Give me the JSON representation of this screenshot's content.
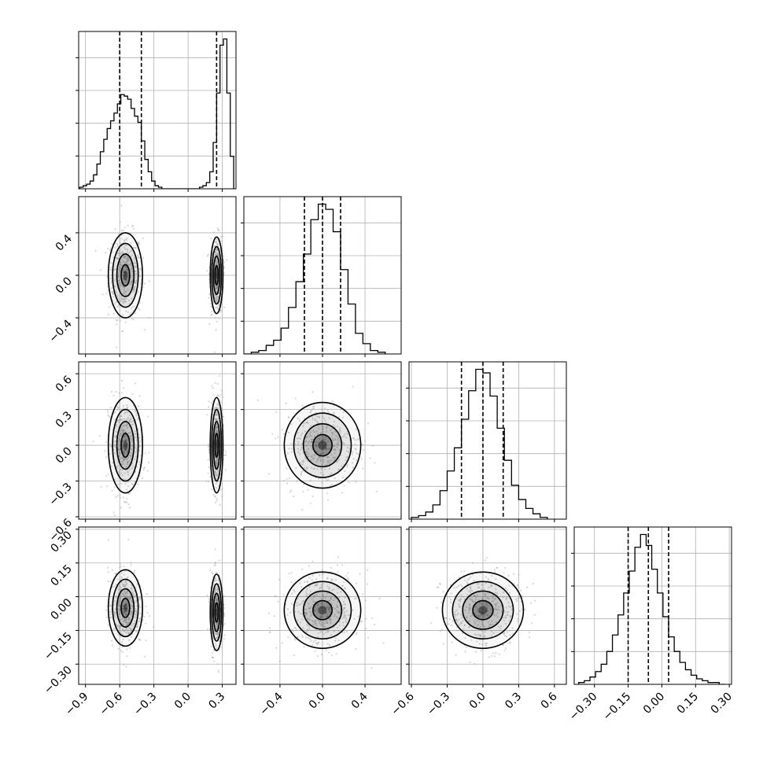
{
  "chart_data": {
    "type": "corner",
    "title": "",
    "n_params": 4,
    "params": [
      {
        "label": "",
        "range": [
          -0.96,
          0.42
        ],
        "ticks": [
          -0.9,
          -0.6,
          -0.3,
          0.0,
          0.3
        ],
        "tick_labels": [
          "−0.9",
          "−0.6",
          "−0.3",
          "0.0",
          "0.3"
        ],
        "quantiles": [
          -0.6,
          -0.41,
          0.25
        ],
        "hist": {
          "edges": [
            -0.95,
            -0.92,
            -0.89,
            -0.86,
            -0.83,
            -0.8,
            -0.77,
            -0.74,
            -0.71,
            -0.68,
            -0.65,
            -0.62,
            -0.59,
            -0.56,
            -0.53,
            -0.5,
            -0.47,
            -0.44,
            -0.41,
            -0.38,
            -0.35,
            -0.32,
            -0.29,
            -0.26,
            -0.23,
            -0.2,
            -0.17,
            -0.14,
            -0.11,
            -0.08,
            -0.05,
            -0.02,
            0.01,
            0.04,
            0.07,
            0.1,
            0.13,
            0.16,
            0.19,
            0.22,
            0.25,
            0.28,
            0.31,
            0.34,
            0.37,
            0.4
          ],
          "counts": [
            0.01,
            0.02,
            0.03,
            0.05,
            0.09,
            0.16,
            0.24,
            0.32,
            0.39,
            0.44,
            0.49,
            0.55,
            0.61,
            0.6,
            0.58,
            0.52,
            0.47,
            0.43,
            0.31,
            0.19,
            0.11,
            0.05,
            0.02,
            0.01,
            0.0,
            0.0,
            0.0,
            0.0,
            0.0,
            0.0,
            0.0,
            0.0,
            0.0,
            0.0,
            0.0,
            0.01,
            0.02,
            0.04,
            0.11,
            0.3,
            0.62,
            0.93,
            0.97,
            0.62,
            0.21
          ]
        }
      },
      {
        "label": "",
        "range": [
          -0.74,
          0.74
        ],
        "ticks": [
          -0.4,
          0.0,
          0.4
        ],
        "tick_labels": [
          "−0.4",
          "0.0",
          "0.4"
        ],
        "quantiles": [
          -0.17,
          0.0,
          0.17
        ],
        "hist": {
          "edges": [
            -0.74,
            -0.67,
            -0.6,
            -0.53,
            -0.46,
            -0.39,
            -0.32,
            -0.25,
            -0.18,
            -0.11,
            -0.04,
            0.03,
            0.1,
            0.17,
            0.24,
            0.31,
            0.38,
            0.45,
            0.52,
            0.59
          ],
          "counts": [
            0.0,
            0.01,
            0.02,
            0.05,
            0.08,
            0.15,
            0.27,
            0.42,
            0.58,
            0.78,
            0.87,
            0.84,
            0.71,
            0.49,
            0.29,
            0.12,
            0.06,
            0.02,
            0.01
          ]
        }
      },
      {
        "label": "",
        "range": [
          -0.62,
          0.7
        ],
        "ticks": [
          -0.6,
          -0.3,
          0.0,
          0.3,
          0.6
        ],
        "tick_labels": [
          "−0.6",
          "−0.3",
          "0.0",
          "0.3",
          "0.6"
        ],
        "quantiles": [
          -0.18,
          0.0,
          0.17
        ],
        "hist": {
          "edges": [
            -0.6,
            -0.54,
            -0.48,
            -0.42,
            -0.36,
            -0.3,
            -0.24,
            -0.18,
            -0.12,
            -0.06,
            0.0,
            0.06,
            0.12,
            0.18,
            0.24,
            0.3,
            0.36,
            0.42,
            0.48,
            0.54
          ],
          "counts": [
            0.01,
            0.02,
            0.04,
            0.08,
            0.16,
            0.27,
            0.4,
            0.56,
            0.72,
            0.84,
            0.82,
            0.69,
            0.51,
            0.33,
            0.19,
            0.11,
            0.06,
            0.03,
            0.01
          ]
        }
      },
      {
        "label": "",
        "range": [
          -0.39,
          0.31
        ],
        "ticks": [
          -0.3,
          -0.15,
          0.0,
          0.15,
          0.3
        ],
        "tick_labels": [
          "−0.30",
          "−0.15",
          "0.00",
          "0.15",
          "0.30"
        ],
        "quantiles": [
          -0.15,
          -0.06,
          0.03
        ],
        "hist": {
          "edges": [
            -0.37,
            -0.345,
            -0.32,
            -0.295,
            -0.27,
            -0.245,
            -0.22,
            -0.195,
            -0.17,
            -0.145,
            -0.12,
            -0.095,
            -0.07,
            -0.045,
            -0.02,
            0.005,
            0.03,
            0.055,
            0.08,
            0.105,
            0.13,
            0.155,
            0.18,
            0.205,
            0.23,
            0.255,
            0.28
          ],
          "counts": [
            0.01,
            0.02,
            0.04,
            0.07,
            0.11,
            0.18,
            0.27,
            0.38,
            0.5,
            0.62,
            0.75,
            0.82,
            0.76,
            0.63,
            0.5,
            0.37,
            0.26,
            0.18,
            0.12,
            0.08,
            0.05,
            0.03,
            0.02,
            0.01,
            0.01,
            0.0
          ]
        }
      }
    ],
    "joint": [
      {
        "row": 1,
        "col": 0,
        "modes": [
          {
            "cx": -0.55,
            "cy": 0.0,
            "sx": 0.075,
            "sy": 0.2,
            "w": 1
          },
          {
            "cx": 0.25,
            "cy": 0.0,
            "sx": 0.028,
            "sy": 0.18,
            "w": 1
          }
        ]
      },
      {
        "row": 2,
        "col": 0,
        "modes": [
          {
            "cx": -0.55,
            "cy": 0.0,
            "sx": 0.075,
            "sy": 0.2,
            "w": 1
          },
          {
            "cx": 0.25,
            "cy": 0.0,
            "sx": 0.028,
            "sy": 0.2,
            "w": 1
          }
        ]
      },
      {
        "row": 2,
        "col": 1,
        "modes": [
          {
            "cx": 0.0,
            "cy": 0.0,
            "sx": 0.18,
            "sy": 0.18,
            "w": 1
          }
        ]
      },
      {
        "row": 3,
        "col": 0,
        "modes": [
          {
            "cx": -0.55,
            "cy": -0.05,
            "sx": 0.075,
            "sy": 0.085,
            "w": 1
          },
          {
            "cx": 0.25,
            "cy": -0.07,
            "sx": 0.028,
            "sy": 0.085,
            "w": 1
          }
        ]
      },
      {
        "row": 3,
        "col": 1,
        "modes": [
          {
            "cx": 0.0,
            "cy": -0.06,
            "sx": 0.18,
            "sy": 0.085,
            "w": 1
          }
        ]
      },
      {
        "row": 3,
        "col": 2,
        "modes": [
          {
            "cx": 0.0,
            "cy": -0.06,
            "sx": 0.17,
            "sy": 0.085,
            "w": 1
          }
        ]
      }
    ],
    "contour_levels_sigma": [
      0.5,
      1.0,
      1.5,
      2.0
    ],
    "grid": true,
    "legend": "none",
    "line_color": "#000000",
    "hist_color": "#000000",
    "scatter_color": "#a6a6a6",
    "grid_color": "#b0b0b0"
  }
}
